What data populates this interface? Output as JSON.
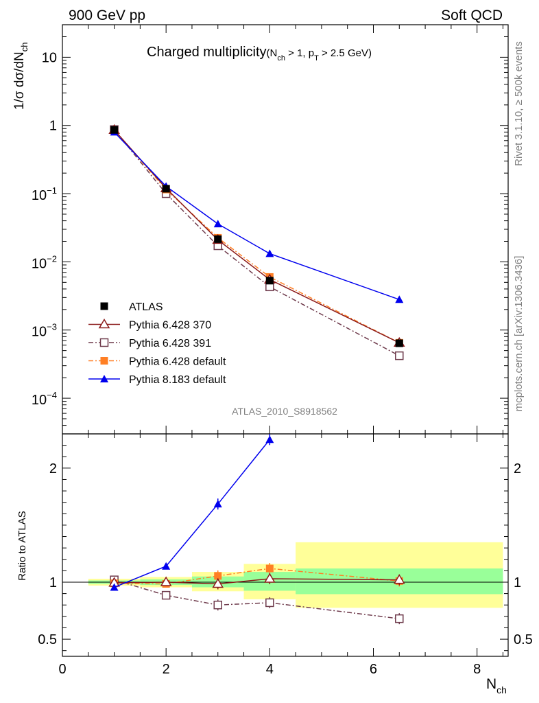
{
  "header": {
    "left": "900 GeV pp",
    "right": "Soft QCD"
  },
  "side": {
    "top": "Rivet 3.1.10, ≥ 500k events",
    "bottom": "mcplots.cern.ch [arXiv:1306.3436]"
  },
  "colors": {
    "atlas": "#000000",
    "py370": "#8b1a1a",
    "py391": "#6e3a4b",
    "py6default": "#ff7f24",
    "py8default": "#0000ee",
    "band_inner": "#99ff99",
    "band_outer": "#ffff99"
  },
  "chart_data": [
    {
      "type": "line",
      "scale_y": "log",
      "title": "Charged multiplicity",
      "title_qualifier": {
        "open": "(N",
        "nsub": "ch",
        "mid": " > 1, p",
        "psub": "T",
        "close": " > 2.5 GeV)"
      },
      "ylabel": {
        "main": "1/σ dσ/dN",
        "sub": "ch"
      },
      "ylim": [
        3e-05,
        30
      ],
      "y_major_ticks": [
        {
          "value": 10,
          "label": "10"
        },
        {
          "value": 1,
          "label": "1"
        },
        {
          "value": 0.1,
          "base": "10",
          "exp": "−1"
        },
        {
          "value": 0.01,
          "base": "10",
          "exp": "−2"
        },
        {
          "value": 0.001,
          "base": "10",
          "exp": "−3"
        },
        {
          "value": 0.0001,
          "base": "10",
          "exp": "−4"
        }
      ],
      "analysis_label": "ATLAS_2010_S8918562",
      "legend_position": "lower-left",
      "x": [
        1,
        2,
        3,
        4,
        6.5
      ],
      "series": [
        {
          "key": "atlas",
          "name": "ATLAS",
          "values": [
            0.86,
            0.118,
            0.0215,
            0.0053,
            0.00064
          ]
        },
        {
          "key": "py370",
          "name": "Pythia 6.428 370",
          "values": [
            0.86,
            0.12,
            0.021,
            0.0055,
            0.00065
          ]
        },
        {
          "key": "py391",
          "name": "Pythia 6.428 391",
          "values": [
            0.87,
            0.1,
            0.0172,
            0.0043,
            0.00042
          ]
        },
        {
          "key": "py6default",
          "name": "Pythia 6.428 default",
          "values": [
            0.85,
            0.115,
            0.0225,
            0.006,
            0.00065
          ]
        },
        {
          "key": "py8default",
          "name": "Pythia 8.183 default",
          "values": [
            0.8,
            0.128,
            0.036,
            0.0132,
            0.0028
          ]
        }
      ]
    },
    {
      "type": "line",
      "ylabel": "Ratio to ATLAS",
      "xlabel": {
        "main": "N",
        "sub": "ch"
      },
      "xlim": [
        0,
        8.6
      ],
      "ylim": [
        0.35,
        2.3
      ],
      "x_ticks": [
        0,
        2,
        4,
        6,
        8
      ],
      "y_ticks": [
        {
          "value": 0.5,
          "label": "0.5"
        },
        {
          "value": 1,
          "label": "1"
        },
        {
          "value": 2,
          "label": "2"
        }
      ],
      "bins": [
        {
          "lo": 0.5,
          "hi": 1.5,
          "inner": [
            0.985,
            1.015
          ],
          "outer": [
            0.97,
            1.03
          ]
        },
        {
          "lo": 1.5,
          "hi": 2.5,
          "inner": [
            0.975,
            1.025
          ],
          "outer": [
            0.955,
            1.045
          ]
        },
        {
          "lo": 2.5,
          "hi": 3.5,
          "inner": [
            0.955,
            1.05
          ],
          "outer": [
            0.92,
            1.09
          ]
        },
        {
          "lo": 3.5,
          "hi": 4.5,
          "inner": [
            0.925,
            1.09
          ],
          "outer": [
            0.85,
            1.16
          ]
        },
        {
          "lo": 4.5,
          "hi": 8.5,
          "inner": [
            0.895,
            1.12
          ],
          "outer": [
            0.775,
            1.35
          ]
        }
      ],
      "x": [
        1,
        2,
        3,
        4,
        6.5
      ],
      "series": [
        {
          "key": "py370",
          "name": "Pythia 6.428 370",
          "values": [
            0.995,
            1.0,
            0.985,
            1.03,
            1.02
          ]
        },
        {
          "key": "py391",
          "name": "Pythia 6.428 391",
          "values": [
            1.02,
            0.885,
            0.8,
            0.82,
            0.68
          ]
        },
        {
          "key": "py6default",
          "name": "Pythia 6.428 default",
          "values": [
            0.99,
            0.985,
            1.055,
            1.12,
            1.01
          ]
        },
        {
          "key": "py8default",
          "name": "Pythia 8.183 default",
          "values": [
            0.955,
            1.14,
            1.685,
            2.25,
            null
          ]
        }
      ]
    }
  ]
}
